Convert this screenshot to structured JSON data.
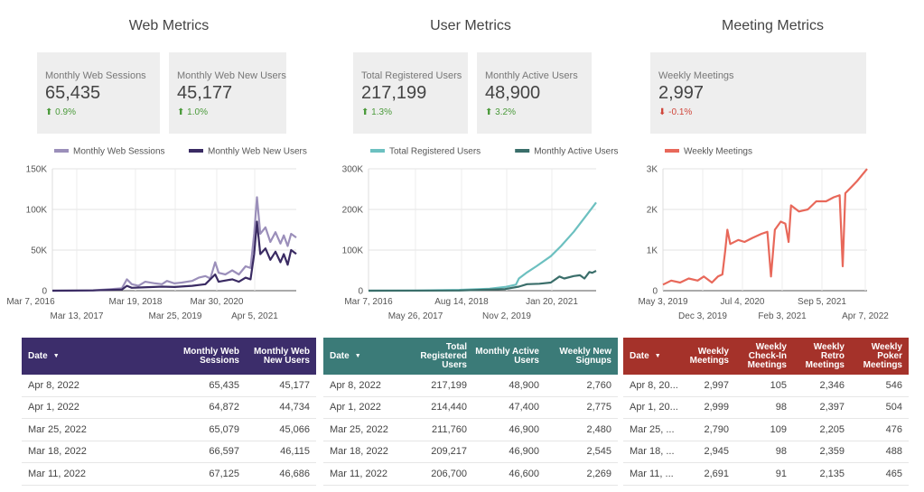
{
  "web": {
    "title": "Web Metrics",
    "cards": [
      {
        "label": "Monthly Web Sessions",
        "value": "65,435",
        "delta": "0.9%",
        "dir": "up"
      },
      {
        "label": "Monthly Web New Users",
        "value": "45,177",
        "delta": "1.0%",
        "dir": "up"
      }
    ],
    "table": {
      "headers": [
        "Date",
        "Monthly Web Sessions",
        "Monthly Web New Users"
      ],
      "rows": [
        [
          "Apr 8, 2022",
          "65,435",
          "45,177"
        ],
        [
          "Apr 1, 2022",
          "64,872",
          "44,734"
        ],
        [
          "Mar 25, 2022",
          "65,079",
          "45,066"
        ],
        [
          "Mar 18, 2022",
          "66,597",
          "46,115"
        ],
        [
          "Mar 11, 2022",
          "67,125",
          "46,686"
        ]
      ]
    }
  },
  "user": {
    "title": "User Metrics",
    "cards": [
      {
        "label": "Total Registered Users",
        "value": "217,199",
        "delta": "1.3%",
        "dir": "up"
      },
      {
        "label": "Monthly Active Users",
        "value": "48,900",
        "delta": "3.2%",
        "dir": "up"
      }
    ],
    "table": {
      "headers": [
        "Date",
        "Total Registered Users",
        "Monthly Active Users",
        "Weekly New Signups"
      ],
      "rows": [
        [
          "Apr 8, 2022",
          "217,199",
          "48,900",
          "2,760"
        ],
        [
          "Apr 1, 2022",
          "214,440",
          "47,400",
          "2,775"
        ],
        [
          "Mar 25, 2022",
          "211,760",
          "46,900",
          "2,480"
        ],
        [
          "Mar 18, 2022",
          "209,217",
          "46,900",
          "2,545"
        ],
        [
          "Mar 11, 2022",
          "206,700",
          "46,600",
          "2,269"
        ]
      ]
    }
  },
  "meeting": {
    "title": "Meeting Metrics",
    "cards": [
      {
        "label": "Weekly Meetings",
        "value": "2,997",
        "delta": "-0.1%",
        "dir": "down"
      }
    ],
    "table": {
      "headers": [
        "Date",
        "Weekly Meetings",
        "Weekly Check-In Meetings",
        "Weekly Retro Meetings",
        "Weekly Poker Meetings"
      ],
      "rows": [
        [
          "Apr 8, 20...",
          "2,997",
          "105",
          "2,346",
          "546"
        ],
        [
          "Apr 1, 20...",
          "2,999",
          "98",
          "2,397",
          "504"
        ],
        [
          "Mar 25, ...",
          "2,790",
          "109",
          "2,205",
          "476"
        ],
        [
          "Mar 18, ...",
          "2,945",
          "98",
          "2,359",
          "488"
        ],
        [
          "Mar 11, ...",
          "2,691",
          "91",
          "2,135",
          "465"
        ]
      ]
    }
  },
  "colors": {
    "web_header": "#3c2d6b",
    "user_header": "#3b7b78",
    "meeting_header": "#a5322a",
    "web_sessions": "#9b8fba",
    "web_new_users": "#3a2b63",
    "registered_users": "#6cc0c0",
    "active_users": "#3a6e6a",
    "weekly_meetings": "#e8685a",
    "delta_up": "#4a9a3a",
    "delta_down": "#d0453a"
  },
  "chart_data": [
    {
      "type": "line",
      "title": "",
      "xlabel": "",
      "ylabel": "",
      "x_tick_labels": [
        "Mar 7, 2016",
        "Mar 13, 2017",
        "Mar 19, 2018",
        "Mar 25, 2019",
        "Mar 30, 2020",
        "Apr 5, 2021"
      ],
      "y_tick_labels": [
        "0",
        "50K",
        "100K",
        "150K"
      ],
      "ylim": [
        0,
        150000
      ],
      "xlim": [
        "2016-03-07",
        "2022-04-08"
      ],
      "legend": "top-left",
      "grid": true,
      "series": [
        {
          "name": "Monthly Web Sessions",
          "color": "#9b8fba",
          "points": [
            [
              "2016-03-07",
              0
            ],
            [
              "2016-09-01",
              0
            ],
            [
              "2017-03-13",
              500
            ],
            [
              "2017-09-01",
              2000
            ],
            [
              "2017-12-01",
              3000
            ],
            [
              "2018-01-15",
              14000
            ],
            [
              "2018-03-01",
              8000
            ],
            [
              "2018-05-01",
              6000
            ],
            [
              "2018-07-01",
              11000
            ],
            [
              "2018-10-01",
              9000
            ],
            [
              "2018-12-01",
              8000
            ],
            [
              "2019-01-15",
              12000
            ],
            [
              "2019-03-25",
              9000
            ],
            [
              "2019-06-01",
              10000
            ],
            [
              "2019-09-01",
              12000
            ],
            [
              "2019-11-01",
              16000
            ],
            [
              "2020-01-01",
              18000
            ],
            [
              "2020-02-15",
              15000
            ],
            [
              "2020-03-30",
              35000
            ],
            [
              "2020-05-01",
              22000
            ],
            [
              "2020-07-01",
              20000
            ],
            [
              "2020-09-01",
              25000
            ],
            [
              "2020-11-01",
              20000
            ],
            [
              "2021-01-01",
              30000
            ],
            [
              "2021-02-15",
              28000
            ],
            [
              "2021-03-20",
              70000
            ],
            [
              "2021-04-15",
              115000
            ],
            [
              "2021-05-15",
              70000
            ],
            [
              "2021-07-01",
              78000
            ],
            [
              "2021-08-15",
              60000
            ],
            [
              "2021-10-01",
              72000
            ],
            [
              "2021-11-15",
              58000
            ],
            [
              "2021-12-15",
              68000
            ],
            [
              "2022-01-20",
              55000
            ],
            [
              "2022-02-20",
              70000
            ],
            [
              "2022-04-08",
              65435
            ]
          ]
        },
        {
          "name": "Monthly Web New Users",
          "color": "#3a2b63",
          "points": [
            [
              "2016-03-07",
              0
            ],
            [
              "2017-03-13",
              300
            ],
            [
              "2017-12-01",
              1500
            ],
            [
              "2018-01-15",
              6000
            ],
            [
              "2018-03-01",
              3500
            ],
            [
              "2018-06-01",
              4000
            ],
            [
              "2018-12-01",
              5000
            ],
            [
              "2019-03-25",
              4500
            ],
            [
              "2019-09-01",
              6000
            ],
            [
              "2020-01-01",
              8000
            ],
            [
              "2020-03-30",
              20000
            ],
            [
              "2020-05-01",
              11000
            ],
            [
              "2020-09-01",
              14000
            ],
            [
              "2020-11-01",
              11000
            ],
            [
              "2021-01-01",
              16000
            ],
            [
              "2021-02-15",
              14000
            ],
            [
              "2021-03-20",
              45000
            ],
            [
              "2021-04-15",
              85000
            ],
            [
              "2021-05-15",
              45000
            ],
            [
              "2021-07-01",
              52000
            ],
            [
              "2021-08-15",
              38000
            ],
            [
              "2021-10-01",
              48000
            ],
            [
              "2021-11-15",
              35000
            ],
            [
              "2021-12-15",
              45000
            ],
            [
              "2022-01-20",
              32000
            ],
            [
              "2022-02-20",
              50000
            ],
            [
              "2022-04-08",
              45177
            ]
          ]
        }
      ]
    },
    {
      "type": "line",
      "title": "",
      "xlabel": "",
      "ylabel": "",
      "x_tick_labels": [
        "Mar 7, 2016",
        "May 26, 2017",
        "Aug 14, 2018",
        "Nov 2, 2019",
        "Jan 20, 2021"
      ],
      "y_tick_labels": [
        "0",
        "100K",
        "200K",
        "300K"
      ],
      "ylim": [
        0,
        300000
      ],
      "xlim": [
        "2016-03-07",
        "2022-04-08"
      ],
      "legend": "top-left",
      "grid": true,
      "series": [
        {
          "name": "Total Registered Users",
          "color": "#6cc0c0",
          "points": [
            [
              "2016-03-07",
              0
            ],
            [
              "2017-05-26",
              500
            ],
            [
              "2018-08-14",
              2000
            ],
            [
              "2019-06-01",
              5000
            ],
            [
              "2019-11-02",
              9000
            ],
            [
              "2020-02-15",
              15000
            ],
            [
              "2020-03-15",
              30000
            ],
            [
              "2020-06-01",
              45000
            ],
            [
              "2020-09-01",
              60000
            ],
            [
              "2021-01-20",
              85000
            ],
            [
              "2021-05-01",
              110000
            ],
            [
              "2021-09-01",
              145000
            ],
            [
              "2022-01-01",
              185000
            ],
            [
              "2022-04-08",
              217199
            ]
          ]
        },
        {
          "name": "Monthly Active Users",
          "color": "#3a6e6a",
          "points": [
            [
              "2016-03-07",
              0
            ],
            [
              "2018-08-14",
              500
            ],
            [
              "2019-11-02",
              4000
            ],
            [
              "2020-03-15",
              10000
            ],
            [
              "2020-06-01",
              16000
            ],
            [
              "2020-10-01",
              17000
            ],
            [
              "2021-01-20",
              20000
            ],
            [
              "2021-04-15",
              35000
            ],
            [
              "2021-06-01",
              30000
            ],
            [
              "2021-09-01",
              36000
            ],
            [
              "2021-11-01",
              38000
            ],
            [
              "2021-12-15",
              30000
            ],
            [
              "2022-02-01",
              46000
            ],
            [
              "2022-03-01",
              44000
            ],
            [
              "2022-04-08",
              48900
            ]
          ]
        }
      ]
    },
    {
      "type": "line",
      "title": "",
      "xlabel": "",
      "ylabel": "",
      "x_tick_labels": [
        "May 3, 2019",
        "Dec 3, 2019",
        "Jul 4, 2020",
        "Feb 3, 2021",
        "Sep 5, 2021",
        "Apr 7, 2022"
      ],
      "y_tick_labels": [
        "0",
        "1K",
        "2K",
        "3K"
      ],
      "ylim": [
        0,
        3000
      ],
      "xlim": [
        "2019-05-03",
        "2022-04-08"
      ],
      "legend": "top-left",
      "grid": true,
      "series": [
        {
          "name": "Weekly Meetings",
          "color": "#e8685a",
          "points": [
            [
              "2019-05-03",
              150
            ],
            [
              "2019-06-15",
              250
            ],
            [
              "2019-08-01",
              200
            ],
            [
              "2019-09-15",
              300
            ],
            [
              "2019-11-01",
              250
            ],
            [
              "2019-12-03",
              350
            ],
            [
              "2020-01-15",
              200
            ],
            [
              "2020-02-15",
              350
            ],
            [
              "2020-03-10",
              400
            ],
            [
              "2020-03-25",
              1000
            ],
            [
              "2020-04-05",
              1500
            ],
            [
              "2020-04-20",
              1150
            ],
            [
              "2020-06-01",
              1250
            ],
            [
              "2020-07-04",
              1200
            ],
            [
              "2020-08-15",
              1300
            ],
            [
              "2020-10-01",
              1400
            ],
            [
              "2020-11-01",
              1450
            ],
            [
              "2020-11-20",
              350
            ],
            [
              "2020-12-10",
              1500
            ],
            [
              "2021-01-10",
              1700
            ],
            [
              "2021-02-03",
              1650
            ],
            [
              "2021-02-20",
              1200
            ],
            [
              "2021-03-05",
              2100
            ],
            [
              "2021-04-15",
              1950
            ],
            [
              "2021-06-01",
              2000
            ],
            [
              "2021-07-15",
              2200
            ],
            [
              "2021-09-05",
              2200
            ],
            [
              "2021-10-15",
              2300
            ],
            [
              "2021-11-15",
              2350
            ],
            [
              "2021-12-01",
              600
            ],
            [
              "2021-12-15",
              2400
            ],
            [
              "2022-01-15",
              2550
            ],
            [
              "2022-02-15",
              2700
            ],
            [
              "2022-04-08",
              2997
            ]
          ]
        }
      ]
    }
  ]
}
